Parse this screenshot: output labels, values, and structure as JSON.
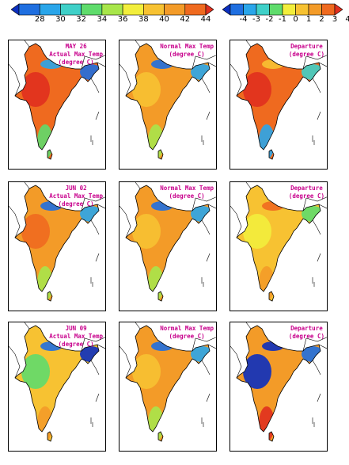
{
  "colorbars": {
    "actual": {
      "labels": [
        "28",
        "30",
        "32",
        "34",
        "36",
        "38",
        "40",
        "42",
        "44"
      ],
      "colors": [
        "#0b2fbf",
        "#1f6fe0",
        "#2aa6ea",
        "#3fd0c8",
        "#5fdc6c",
        "#a8e64a",
        "#f2ee3c",
        "#f7c232",
        "#f39b28",
        "#ef6a1f",
        "#e0301e"
      ]
    },
    "departure": {
      "labels": [
        "-4",
        "-3",
        "-2",
        "-1",
        "0",
        "1",
        "2",
        "3",
        "4"
      ],
      "colors": [
        "#0b2fbf",
        "#1f6fe0",
        "#2aa6ea",
        "#3fd0c8",
        "#5fdc6c",
        "#f2ee3c",
        "#f7c232",
        "#f39b28",
        "#ef6a1f",
        "#e0301e"
      ]
    }
  },
  "rows": [
    {
      "date": "MAY 26",
      "panels": [
        {
          "title_lines": [
            "MAY 26",
            "Actual Max Temp",
            "(degree C)"
          ],
          "fill": "#ef6a1f",
          "west": "#e0301e",
          "north": "#2aa6ea",
          "east": "#1f6fe0",
          "south": "#5fdc6c"
        },
        {
          "title_lines": [
            "Normal Max Temp",
            "(degree C)"
          ],
          "fill": "#f39b28",
          "west": "#f7c232",
          "north": "#1f6fe0",
          "east": "#2aa6ea",
          "south": "#a8e64a"
        },
        {
          "title_lines": [
            "Departure",
            "(degree C)"
          ],
          "fill": "#ef6a1f",
          "west": "#e0301e",
          "north": "#f7c232",
          "east": "#3fd0c8",
          "south": "#2aa6ea"
        }
      ]
    },
    {
      "date": "JUN 02",
      "panels": [
        {
          "title_lines": [
            "JUN 02",
            "Actual Max Temp",
            "(degree C)"
          ],
          "fill": "#f39b28",
          "west": "#ef6a1f",
          "north": "#1f6fe0",
          "east": "#2aa6ea",
          "south": "#a8e64a"
        },
        {
          "title_lines": [
            "Normal Max Temp",
            "(degree C)"
          ],
          "fill": "#f39b28",
          "west": "#f7c232",
          "north": "#1f6fe0",
          "east": "#2aa6ea",
          "south": "#a8e64a"
        },
        {
          "title_lines": [
            "Departure",
            "(degree C)"
          ],
          "fill": "#f7c232",
          "west": "#f2ee3c",
          "north": "#ef6a1f",
          "east": "#5fdc6c",
          "south": "#f39b28"
        }
      ]
    },
    {
      "date": "JUN 09",
      "panels": [
        {
          "title_lines": [
            "JUN 09",
            "Actual Max Temp",
            "(degree C)"
          ],
          "fill": "#f7c232",
          "west": "#5fdc6c",
          "north": "#1f6fe0",
          "east": "#0b2fbf",
          "south": "#f39b28"
        },
        {
          "title_lines": [
            "Normal Max Temp",
            "(degree C)"
          ],
          "fill": "#f39b28",
          "west": "#f7c232",
          "north": "#1f6fe0",
          "east": "#2aa6ea",
          "south": "#a8e64a"
        },
        {
          "title_lines": [
            "Departure",
            "(degree C)"
          ],
          "fill": "#f39b28",
          "west": "#0b2fbf",
          "north": "#0b2fbf",
          "east": "#1f6fe0",
          "south": "#e0301e"
        }
      ]
    }
  ]
}
